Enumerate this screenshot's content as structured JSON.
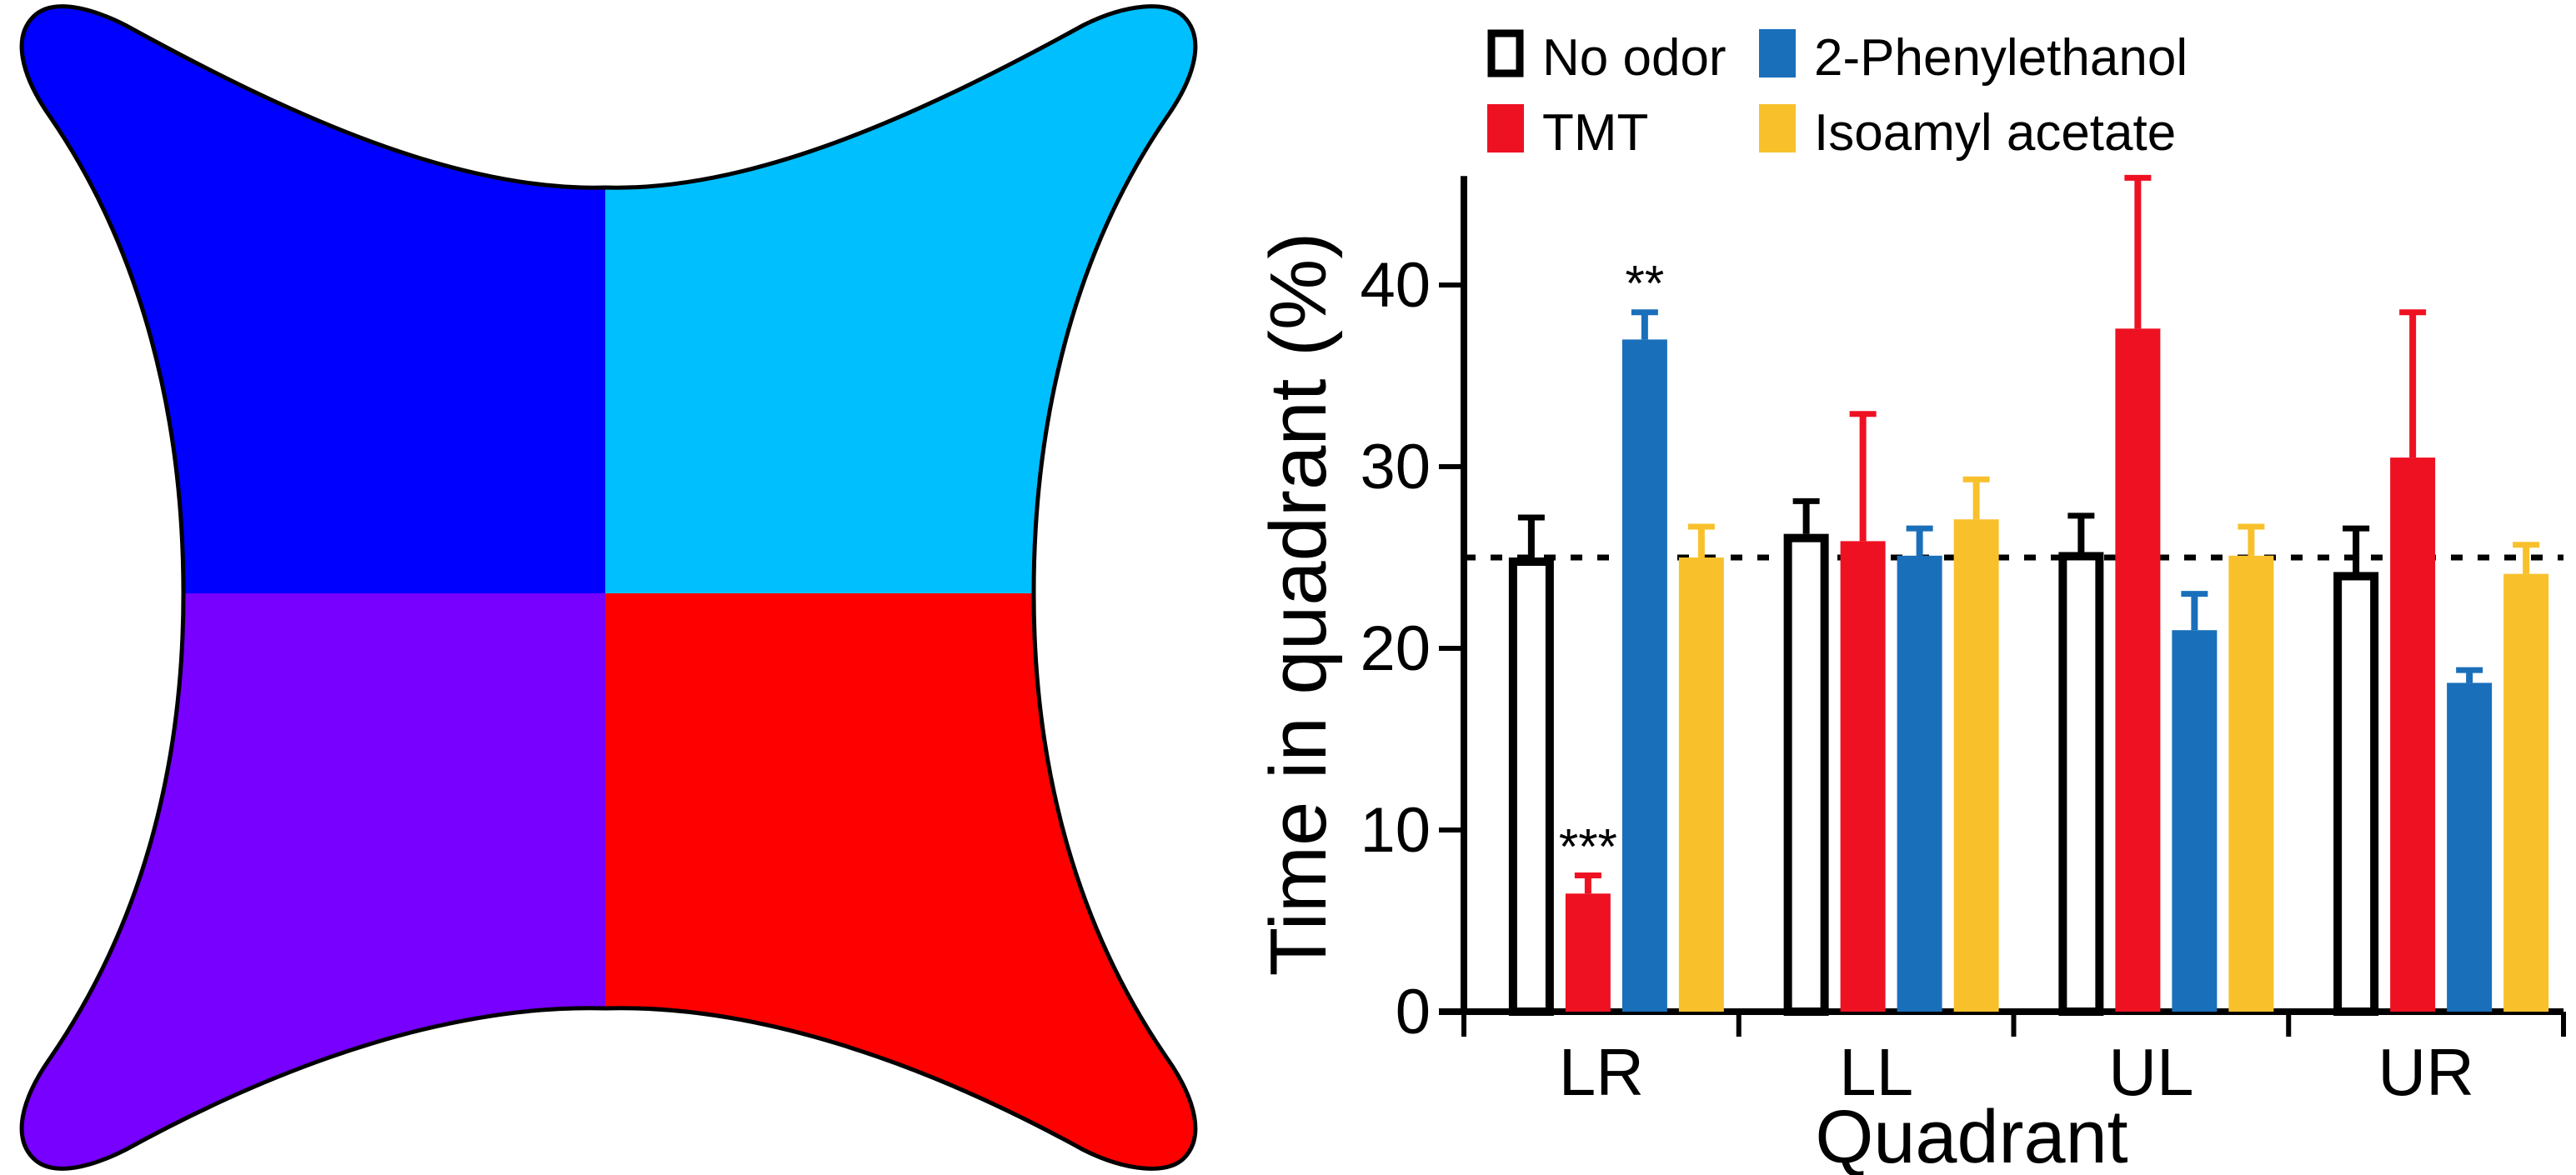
{
  "arena": {
    "quadrants": [
      {
        "id": "UL",
        "color": "#0000FF"
      },
      {
        "id": "UR",
        "color": "#00BFFF"
      },
      {
        "id": "LL",
        "color": "#7700FF"
      },
      {
        "id": "LR",
        "color": "#FF0000"
      }
    ]
  },
  "chart_data": {
    "type": "bar",
    "title": "",
    "xlabel": "Quadrant",
    "ylabel": "Time in quadrant (%)",
    "ylim": [
      0,
      46
    ],
    "yticks": [
      0,
      10,
      20,
      30,
      40
    ],
    "ytick_labels": [
      "0",
      "10",
      "20",
      "30",
      "40"
    ],
    "categories": [
      "LR",
      "LL",
      "UL",
      "UR"
    ],
    "reference_line": {
      "value": 25,
      "style": "dotted"
    },
    "legend": {
      "placement": "top",
      "columns": 2
    },
    "series": [
      {
        "name": "No odor",
        "color": "#000000",
        "fill": "none",
        "values": [
          25.0,
          26.3,
          25.3,
          24.2
        ],
        "errors": [
          2.2,
          1.8,
          2.0,
          2.4
        ]
      },
      {
        "name": "TMT",
        "color": "#EE1122",
        "fill": "solid",
        "values": [
          6.5,
          25.9,
          37.6,
          30.5
        ],
        "errors": [
          1.0,
          7.0,
          8.3,
          8.0
        ]
      },
      {
        "name": "2-Phenylethanol",
        "color": "#1A6FBA",
        "fill": "solid",
        "values": [
          37.0,
          25.1,
          21.0,
          18.1
        ],
        "errors": [
          1.5,
          1.5,
          2.0,
          0.7
        ]
      },
      {
        "name": "Isoamyl acetate",
        "color": "#F8C12C",
        "fill": "solid",
        "values": [
          25.0,
          27.1,
          25.1,
          24.1
        ],
        "errors": [
          1.7,
          2.2,
          1.6,
          1.6
        ]
      }
    ],
    "annotations": [
      {
        "category": "LR",
        "series": "TMT",
        "text": "***"
      },
      {
        "category": "LR",
        "series": "2-Phenylethanol",
        "text": "**"
      }
    ]
  }
}
